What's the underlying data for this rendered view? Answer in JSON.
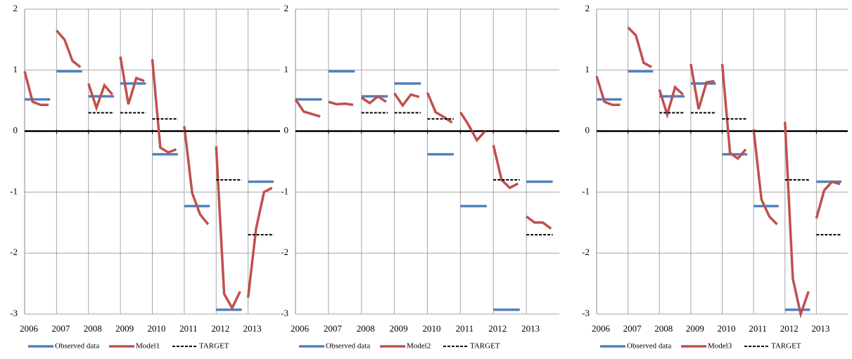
{
  "chart_data": [
    {
      "type": "line",
      "xlim": [
        2006,
        2014
      ],
      "xticks": [
        2006,
        2007,
        2008,
        2009,
        2010,
        2011,
        2012,
        2013
      ],
      "ylim": [
        -3,
        2
      ],
      "yticks": [
        -3,
        -2,
        -1,
        0,
        1,
        2
      ],
      "grid": true,
      "legend": "bottom",
      "series": [
        {
          "name": "Observed data",
          "color": "#4f81bd",
          "x": [
            2006,
            2007,
            2008,
            2009,
            2010,
            2011,
            2012,
            2013
          ],
          "values": [
            0.52,
            0.98,
            0.57,
            0.78,
            -0.38,
            -1.23,
            -2.93,
            -0.83
          ]
        },
        {
          "name": "Model1",
          "color": "#c0504d",
          "x": [
            2006,
            2006.25,
            2006.5,
            2006.75,
            2007,
            2007.25,
            2007.5,
            2007.75,
            2008,
            2008.25,
            2008.5,
            2008.75,
            2009,
            2009.25,
            2009.5,
            2009.75,
            2010,
            2010.25,
            2010.5,
            2010.75,
            2011,
            2011.25,
            2011.5,
            2011.75,
            2012,
            2012.25,
            2012.5,
            2012.75,
            2013,
            2013.25,
            2013.5,
            2013.75
          ],
          "values": [
            0.98,
            0.48,
            0.43,
            0.43,
            1.65,
            1.5,
            1.15,
            1.05,
            0.78,
            0.38,
            0.75,
            0.6,
            1.22,
            0.44,
            0.87,
            0.82,
            1.18,
            -0.27,
            -0.35,
            -0.3,
            0.08,
            -1.02,
            -1.37,
            -1.53,
            -0.25,
            -2.67,
            -2.9,
            -2.63,
            -2.73,
            -1.6,
            -1.0,
            -0.93
          ]
        },
        {
          "name": "TARGET",
          "color": "#000000",
          "dashed": true,
          "x": [
            2006,
            2007,
            2008,
            2009,
            2010,
            2011,
            2012,
            2013
          ],
          "values": [
            0,
            0,
            0.3,
            0.3,
            0.2,
            0,
            -0.8,
            -1.7
          ]
        }
      ]
    },
    {
      "type": "line",
      "xlim": [
        2006,
        2014
      ],
      "xticks": [
        2006,
        2007,
        2008,
        2009,
        2010,
        2011,
        2012,
        2013
      ],
      "ylim": [
        -3,
        2
      ],
      "yticks": [
        -3,
        -2,
        -1,
        0,
        1,
        2
      ],
      "grid": true,
      "legend": "bottom",
      "series": [
        {
          "name": "Observed data",
          "color": "#4f81bd",
          "x": [
            2006,
            2007,
            2008,
            2009,
            2010,
            2011,
            2012,
            2013
          ],
          "values": [
            0.52,
            0.98,
            0.57,
            0.78,
            -0.38,
            -1.23,
            -2.93,
            -0.83
          ]
        },
        {
          "name": "Model2",
          "color": "#c0504d",
          "x": [
            2006,
            2006.25,
            2006.5,
            2006.75,
            2007,
            2007.25,
            2007.5,
            2007.75,
            2008,
            2008.25,
            2008.5,
            2008.75,
            2009,
            2009.25,
            2009.5,
            2009.75,
            2010,
            2010.25,
            2010.5,
            2010.75,
            2011,
            2011.25,
            2011.5,
            2011.75,
            2012,
            2012.25,
            2012.5,
            2012.75,
            2013,
            2013.25,
            2013.5,
            2013.75
          ],
          "values": [
            0.52,
            0.32,
            0.28,
            0.24,
            0.48,
            0.44,
            0.45,
            0.43,
            0.55,
            0.46,
            0.57,
            0.48,
            0.62,
            0.42,
            0.6,
            0.56,
            0.63,
            0.31,
            0.23,
            0.14,
            0.31,
            0.1,
            -0.15,
            0,
            -0.23,
            -0.8,
            -0.93,
            -0.86,
            -1.4,
            -1.5,
            -1.5,
            -1.6
          ]
        },
        {
          "name": "TARGET",
          "color": "#000000",
          "dashed": true,
          "x": [
            2006,
            2007,
            2008,
            2009,
            2010,
            2011,
            2012,
            2013
          ],
          "values": [
            0,
            0,
            0.3,
            0.3,
            0.2,
            0,
            -0.8,
            -1.7
          ]
        }
      ]
    },
    {
      "type": "line",
      "xlim": [
        2006,
        2014
      ],
      "xticks": [
        2006,
        2007,
        2008,
        2009,
        2010,
        2011,
        2012,
        2013
      ],
      "ylim": [
        -3,
        2
      ],
      "yticks": [
        -3,
        -2,
        -1,
        0,
        1,
        2
      ],
      "grid": true,
      "legend": "bottom",
      "series": [
        {
          "name": "Observed data",
          "color": "#4f81bd",
          "x": [
            2006,
            2007,
            2008,
            2009,
            2010,
            2011,
            2012,
            2013
          ],
          "values": [
            0.52,
            0.98,
            0.57,
            0.78,
            -0.38,
            -1.23,
            -2.93,
            -0.83
          ]
        },
        {
          "name": "Model3",
          "color": "#c0504d",
          "x": [
            2006,
            2006.25,
            2006.5,
            2006.75,
            2007,
            2007.25,
            2007.5,
            2007.75,
            2008,
            2008.25,
            2008.5,
            2008.75,
            2009,
            2009.25,
            2009.5,
            2009.75,
            2010,
            2010.25,
            2010.5,
            2010.75,
            2011,
            2011.25,
            2011.5,
            2011.75,
            2012,
            2012.25,
            2012.5,
            2012.75,
            2013,
            2013.25,
            2013.5,
            2013.75
          ],
          "values": [
            0.9,
            0.48,
            0.43,
            0.43,
            1.7,
            1.57,
            1.12,
            1.05,
            0.68,
            0.27,
            0.72,
            0.6,
            1.1,
            0.36,
            0.8,
            0.82,
            1.1,
            -0.36,
            -0.45,
            -0.3,
            0.03,
            -1.12,
            -1.4,
            -1.53,
            0.15,
            -2.42,
            -3.0,
            -2.63,
            -1.43,
            -0.97,
            -0.83,
            -0.87
          ]
        },
        {
          "name": "TARGET",
          "color": "#000000",
          "dashed": true,
          "x": [
            2006,
            2007,
            2008,
            2009,
            2010,
            2011,
            2012,
            2013
          ],
          "values": [
            0,
            0,
            0.3,
            0.3,
            0.2,
            0,
            -0.8,
            -1.7
          ]
        }
      ]
    }
  ]
}
